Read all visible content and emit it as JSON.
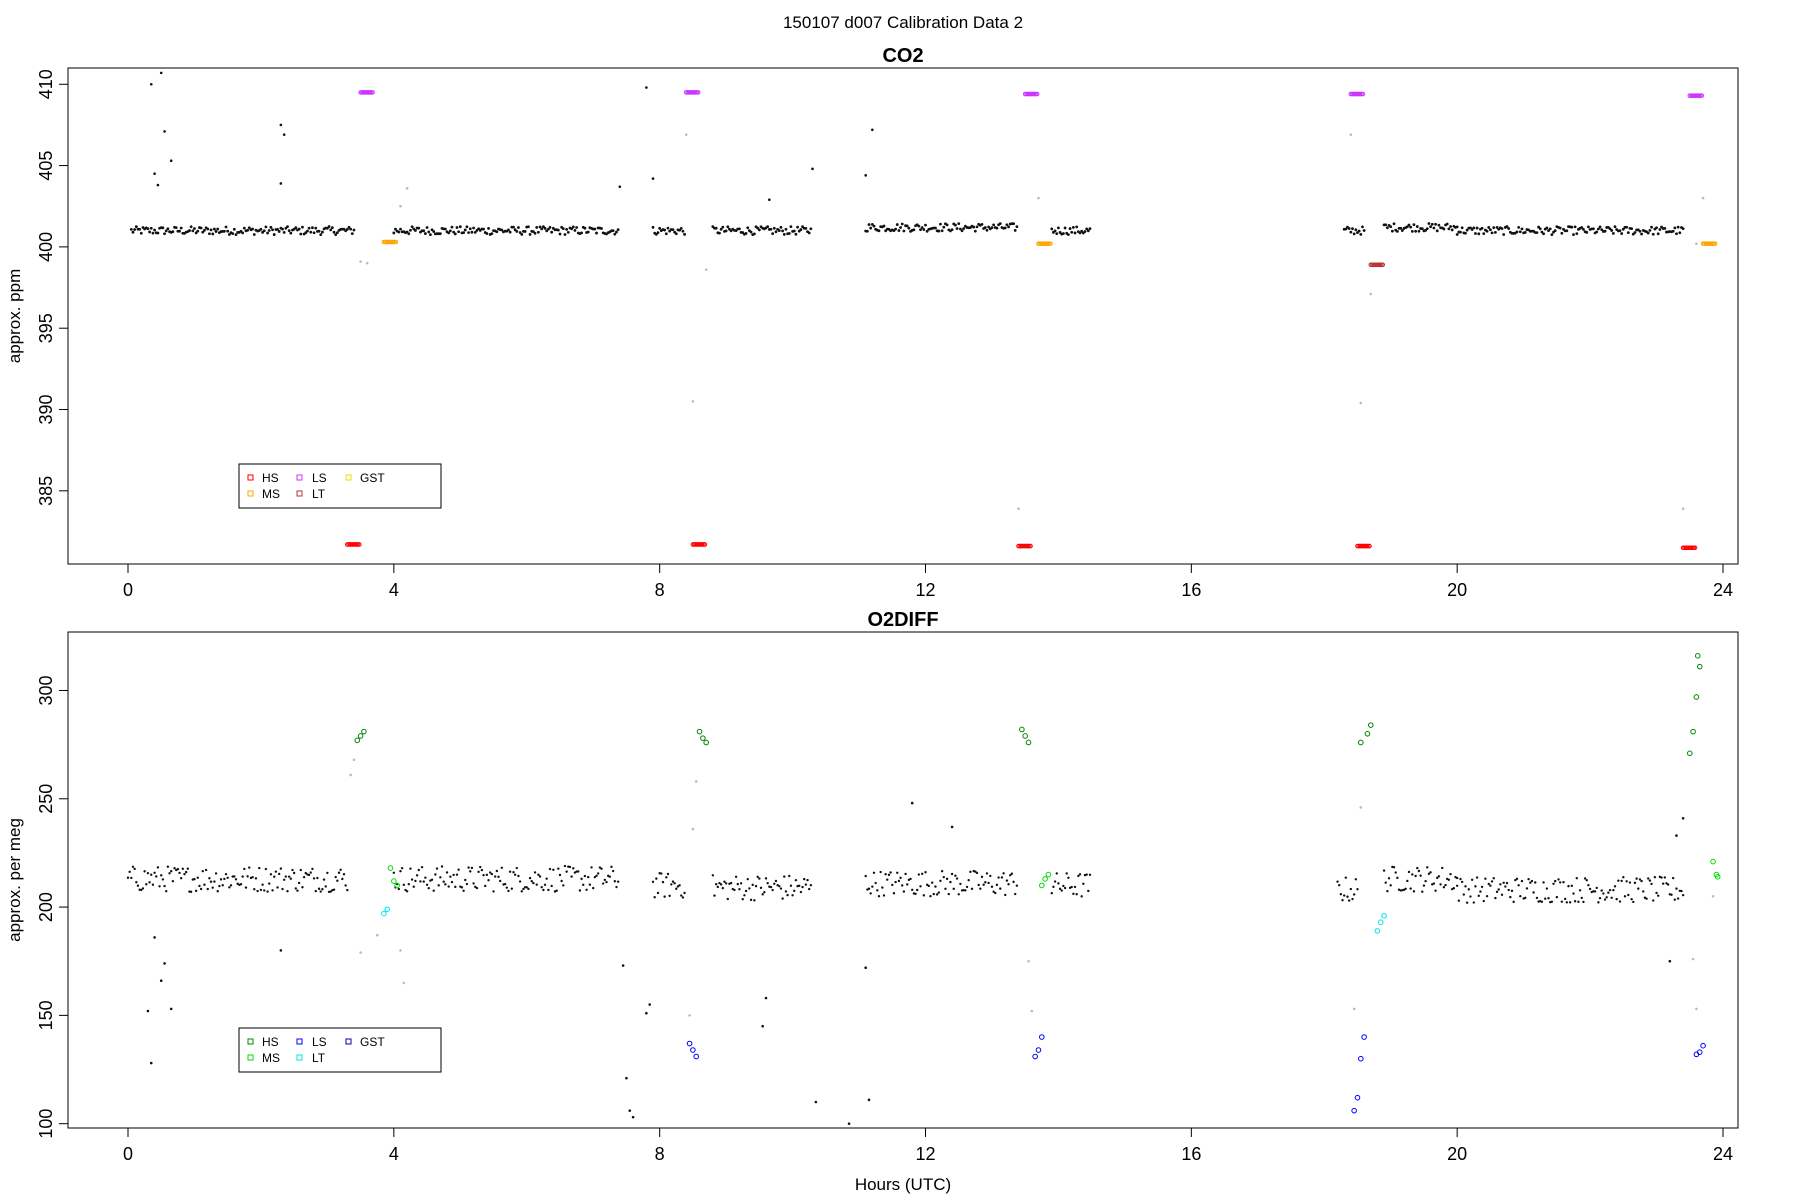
{
  "title": "150107   d007   Calibration Data 2",
  "colors": {
    "HS": "#ff0000",
    "MS": "#ffa500",
    "LS": "#cc33ff",
    "LT": "#bb3333",
    "GST": "#e6e600",
    "O2_HS": "#008800",
    "O2_MS": "#00dd00",
    "O2_LS": "#0000ff",
    "O2_LT": "#00e6e6",
    "O2_GST": "#0000aa",
    "data": "#111111",
    "flagged": "#bbbbbb"
  },
  "chart_data": [
    {
      "type": "scatter",
      "title": "CO2",
      "xlabel": "",
      "ylabel": "approx. ppm",
      "xlim": [
        0,
        24.5
      ],
      "ylim": [
        380.5,
        411.0
      ],
      "xticks": [
        "0",
        "4",
        "8",
        "12",
        "16",
        "20",
        "24"
      ],
      "yticks": [
        "385",
        "390",
        "395",
        "400",
        "405",
        "410"
      ],
      "legend": {
        "position": "bottom-left",
        "entries": [
          "HS",
          "LS",
          "GST",
          "MS",
          "LT"
        ]
      },
      "baseline_segments": [
        {
          "x": [
            0.05,
            3.4
          ],
          "y": 401.0
        },
        {
          "x": [
            4.0,
            7.4
          ],
          "y": 401.0
        },
        {
          "x": [
            7.9,
            8.4
          ],
          "y": 401.0
        },
        {
          "x": [
            8.8,
            10.3
          ],
          "y": 401.0
        },
        {
          "x": [
            11.1,
            13.4
          ],
          "y": 401.2
        },
        {
          "x": [
            13.9,
            14.5
          ],
          "y": 401.0
        },
        {
          "x": [
            18.3,
            18.6
          ],
          "y": 401.0
        },
        {
          "x": [
            18.9,
            20.0
          ],
          "y": 401.2
        },
        {
          "x": [
            20.0,
            23.4
          ],
          "y": 401.0
        }
      ],
      "outliers": [
        {
          "x": 0.35,
          "y": 410.0
        },
        {
          "x": 0.5,
          "y": 410.7
        },
        {
          "x": 0.55,
          "y": 407.1
        },
        {
          "x": 0.4,
          "y": 404.5
        },
        {
          "x": 0.45,
          "y": 403.8
        },
        {
          "x": 0.65,
          "y": 405.3
        },
        {
          "x": 2.3,
          "y": 403.9
        },
        {
          "x": 2.3,
          "y": 407.5
        },
        {
          "x": 2.35,
          "y": 406.9
        },
        {
          "x": 7.4,
          "y": 403.7
        },
        {
          "x": 7.8,
          "y": 409.8
        },
        {
          "x": 7.9,
          "y": 404.2
        },
        {
          "x": 9.65,
          "y": 402.9
        },
        {
          "x": 10.3,
          "y": 404.8
        },
        {
          "x": 11.1,
          "y": 404.4
        },
        {
          "x": 11.2,
          "y": 407.2
        }
      ],
      "flagged_points": [
        {
          "x": 3.5,
          "y": 399.1
        },
        {
          "x": 3.6,
          "y": 399.0
        },
        {
          "x": 4.1,
          "y": 402.5
        },
        {
          "x": 4.2,
          "y": 403.6
        },
        {
          "x": 8.4,
          "y": 406.9
        },
        {
          "x": 8.5,
          "y": 390.5
        },
        {
          "x": 8.7,
          "y": 398.6
        },
        {
          "x": 13.4,
          "y": 383.9
        },
        {
          "x": 13.7,
          "y": 403.0
        },
        {
          "x": 18.4,
          "y": 406.9
        },
        {
          "x": 18.55,
          "y": 390.4
        },
        {
          "x": 18.7,
          "y": 397.1
        },
        {
          "x": 23.4,
          "y": 383.9
        },
        {
          "x": 23.6,
          "y": 400.2
        },
        {
          "x": 23.7,
          "y": 403.0
        }
      ],
      "cal_series": [
        {
          "name": "HS",
          "points": [
            [
              3.4,
              381.7
            ],
            [
              8.6,
              381.7
            ],
            [
              13.5,
              381.6
            ],
            [
              18.6,
              381.6
            ],
            [
              23.5,
              381.5
            ]
          ]
        },
        {
          "name": "LS",
          "points": [
            [
              3.6,
              409.5
            ],
            [
              8.5,
              409.5
            ],
            [
              13.6,
              409.4
            ],
            [
              18.5,
              409.4
            ],
            [
              23.6,
              409.3
            ]
          ]
        },
        {
          "name": "MS",
          "points": [
            [
              3.95,
              400.3
            ],
            [
              13.8,
              400.2
            ],
            [
              23.8,
              400.2
            ]
          ]
        },
        {
          "name": "LT",
          "points": [
            [
              18.8,
              398.9
            ]
          ]
        }
      ]
    },
    {
      "type": "scatter",
      "title": "O2DIFF",
      "xlabel": "Hours (UTC)",
      "ylabel": "approx. per meg",
      "xlim": [
        0,
        24.5
      ],
      "ylim": [
        98,
        327
      ],
      "xticks": [
        "0",
        "4",
        "8",
        "12",
        "16",
        "20",
        "24"
      ],
      "yticks": [
        "100",
        "150",
        "200",
        "250",
        "300"
      ],
      "legend": {
        "position": "bottom-left",
        "entries": [
          "HS",
          "LS",
          "GST",
          "MS",
          "LT"
        ]
      },
      "baseline_segments": [
        {
          "x": [
            0.0,
            3.3
          ],
          "y": 213
        },
        {
          "x": [
            4.0,
            7.4
          ],
          "y": 213
        },
        {
          "x": [
            7.9,
            8.4
          ],
          "y": 210
        },
        {
          "x": [
            8.8,
            10.3
          ],
          "y": 209
        },
        {
          "x": [
            11.1,
            13.4
          ],
          "y": 211
        },
        {
          "x": [
            13.9,
            14.5
          ],
          "y": 210
        },
        {
          "x": [
            18.2,
            18.5
          ],
          "y": 208
        },
        {
          "x": [
            18.9,
            20.0
          ],
          "y": 213
        },
        {
          "x": [
            20.0,
            23.4
          ],
          "y": 208
        }
      ],
      "outliers": [
        {
          "x": 0.3,
          "y": 152
        },
        {
          "x": 0.35,
          "y": 128
        },
        {
          "x": 0.4,
          "y": 186
        },
        {
          "x": 0.5,
          "y": 166
        },
        {
          "x": 0.55,
          "y": 174
        },
        {
          "x": 0.65,
          "y": 153
        },
        {
          "x": 2.3,
          "y": 180
        },
        {
          "x": 7.45,
          "y": 173
        },
        {
          "x": 7.5,
          "y": 121
        },
        {
          "x": 7.55,
          "y": 106
        },
        {
          "x": 7.6,
          "y": 103
        },
        {
          "x": 7.8,
          "y": 151
        },
        {
          "x": 7.85,
          "y": 155
        },
        {
          "x": 9.6,
          "y": 158
        },
        {
          "x": 9.55,
          "y": 145
        },
        {
          "x": 10.35,
          "y": 110
        },
        {
          "x": 10.85,
          "y": 100
        },
        {
          "x": 11.15,
          "y": 111
        },
        {
          "x": 11.1,
          "y": 172
        },
        {
          "x": 11.8,
          "y": 248
        },
        {
          "x": 12.4,
          "y": 237
        },
        {
          "x": 23.3,
          "y": 233
        },
        {
          "x": 23.4,
          "y": 241
        },
        {
          "x": 23.2,
          "y": 175
        }
      ],
      "flagged_points": [
        {
          "x": 3.35,
          "y": 261
        },
        {
          "x": 3.4,
          "y": 268
        },
        {
          "x": 3.5,
          "y": 179
        },
        {
          "x": 3.75,
          "y": 187
        },
        {
          "x": 4.1,
          "y": 180
        },
        {
          "x": 4.15,
          "y": 165
        },
        {
          "x": 8.5,
          "y": 236
        },
        {
          "x": 8.55,
          "y": 258
        },
        {
          "x": 8.45,
          "y": 150
        },
        {
          "x": 13.55,
          "y": 175
        },
        {
          "x": 13.6,
          "y": 152
        },
        {
          "x": 18.45,
          "y": 153
        },
        {
          "x": 18.55,
          "y": 246
        },
        {
          "x": 23.55,
          "y": 176
        },
        {
          "x": 23.6,
          "y": 153
        },
        {
          "x": 23.85,
          "y": 205
        }
      ],
      "cal_series": [
        {
          "name": "HS",
          "points": [
            [
              3.45,
              277
            ],
            [
              3.5,
              279
            ],
            [
              3.55,
              281
            ],
            [
              8.6,
              281
            ],
            [
              8.65,
              278
            ],
            [
              8.7,
              276
            ],
            [
              13.45,
              282
            ],
            [
              13.5,
              279
            ],
            [
              13.55,
              276
            ],
            [
              18.55,
              276
            ],
            [
              18.65,
              280
            ],
            [
              18.7,
              284
            ],
            [
              23.5,
              271
            ],
            [
              23.55,
              281
            ],
            [
              23.6,
              297
            ],
            [
              23.65,
              311
            ],
            [
              23.62,
              316
            ]
          ]
        },
        {
          "name": "MS",
          "points": [
            [
              3.95,
              218
            ],
            [
              4.0,
              212
            ],
            [
              4.05,
              210
            ],
            [
              13.75,
              210
            ],
            [
              13.8,
              213
            ],
            [
              13.85,
              215
            ],
            [
              23.85,
              221
            ],
            [
              23.9,
              215
            ],
            [
              23.92,
              214
            ]
          ]
        },
        {
          "name": "LS",
          "points": [
            [
              8.45,
              137
            ],
            [
              8.5,
              134
            ],
            [
              8.55,
              131
            ],
            [
              13.65,
              131
            ],
            [
              13.7,
              134
            ],
            [
              13.75,
              140
            ],
            [
              18.45,
              106
            ],
            [
              18.5,
              112
            ],
            [
              18.55,
              130
            ],
            [
              18.6,
              140
            ],
            [
              23.6,
              132
            ],
            [
              23.65,
              133
            ],
            [
              23.7,
              136
            ]
          ]
        },
        {
          "name": "LT",
          "points": [
            [
              3.85,
              197
            ],
            [
              3.9,
              199
            ],
            [
              18.8,
              189
            ],
            [
              18.85,
              193
            ],
            [
              18.9,
              196
            ]
          ]
        }
      ]
    }
  ]
}
